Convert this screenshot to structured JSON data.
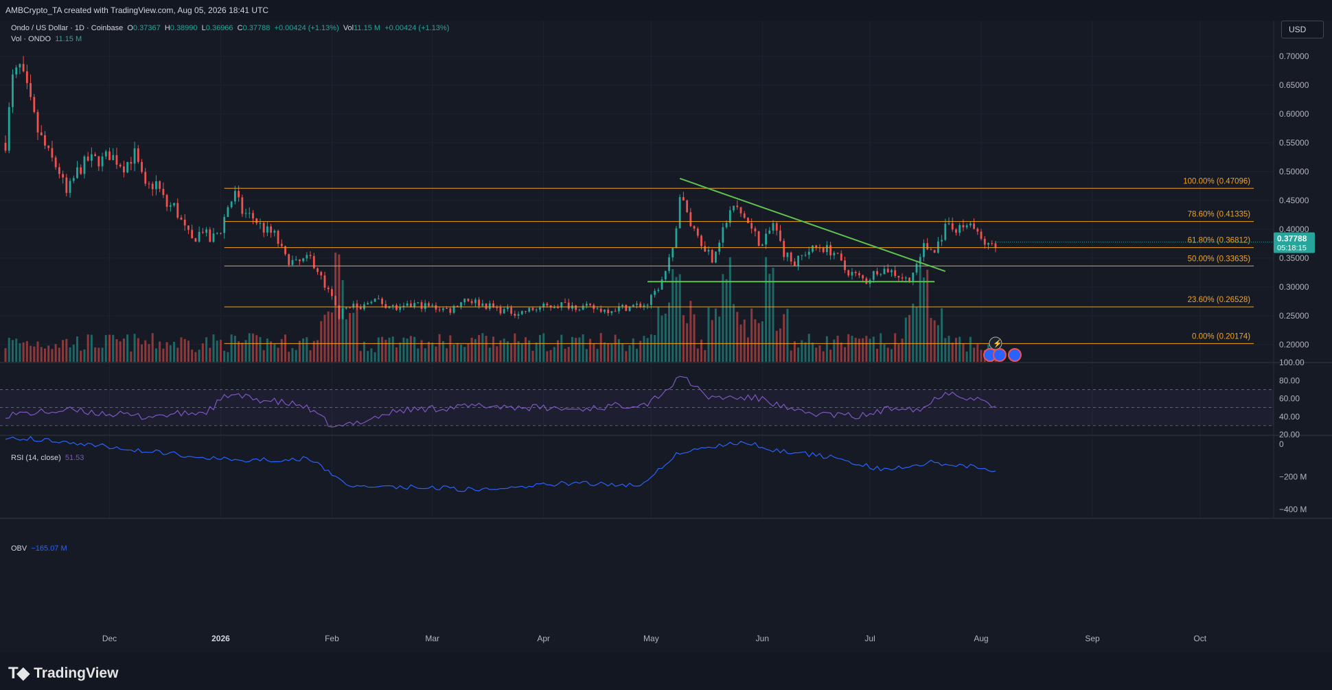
{
  "header": {
    "credit": "AMBCrypto_TA created with TradingView.com, Aug 05, 2026 18:41 UTC"
  },
  "legend": {
    "symbol": "Ondo / US Dollar · 1D · Coinbase",
    "o_label": "O",
    "o": "0.37367",
    "h_label": "H",
    "h": "0.38990",
    "l_label": "L",
    "l": "0.36966",
    "c_label": "C",
    "c": "0.37788",
    "change": "+0.00424 (+1.13%)",
    "vol_label": "Vol",
    "vol": "11.15 M",
    "vol_change": "+0.00424 (+1.13%)",
    "vol_series_label": "Vol · ONDO",
    "vol_series_value": "11.15 M"
  },
  "currency_button": "USD",
  "price_tag": {
    "price": "0.37788",
    "countdown": "05:18:15"
  },
  "rsi_legend": {
    "label": "RSI (14, close)",
    "value": "51.53"
  },
  "obv_legend": {
    "label": "OBV",
    "value": "−165.07 M"
  },
  "footer": {
    "brand": "TradingView"
  },
  "colors": {
    "up": "#26a69a",
    "down": "#ef5350",
    "fib": "#f7a21b",
    "trend": "#5ec44e",
    "rsi": "#7e57c2",
    "obv": "#2962ff",
    "background": "#161a25"
  },
  "chart_data": [
    {
      "type": "candlestick",
      "title": "Ondo / US Dollar · 1D · Coinbase",
      "price_axis": {
        "ylim": [
          0.17,
          0.75
        ],
        "ticks": [
          0.7,
          0.65,
          0.6,
          0.55,
          0.5,
          0.45,
          0.4,
          0.35,
          0.3,
          0.25,
          0.2
        ],
        "tick_labels": [
          "0.70000",
          "0.65000",
          "0.60000",
          "0.55000",
          "0.50000",
          "0.45000",
          "0.40000",
          "0.35000",
          "0.30000",
          "0.25000",
          "0.20000"
        ]
      },
      "time_axis": {
        "range": [
          "2025-11-02",
          "2026-10-20"
        ],
        "ticks": [
          "2025-12-01",
          "2026-01-01",
          "2026-02-01",
          "2026-03-01",
          "2026-04-01",
          "2026-05-01",
          "2026-06-01",
          "2026-07-01",
          "2026-08-01",
          "2026-09-01",
          "2026-10-01"
        ],
        "tick_labels": [
          "Dec",
          "2026",
          "Feb",
          "Mar",
          "Apr",
          "May",
          "Jun",
          "Jul",
          "Aug",
          "Sep",
          "Oct"
        ]
      },
      "close_path": [
        [
          "2025-11-02",
          0.55
        ],
        [
          "2025-11-04",
          0.66
        ],
        [
          "2025-11-06",
          0.68
        ],
        [
          "2025-11-08",
          0.64
        ],
        [
          "2025-11-11",
          0.57
        ],
        [
          "2025-11-14",
          0.53
        ],
        [
          "2025-11-17",
          0.5
        ],
        [
          "2025-11-19",
          0.46
        ],
        [
          "2025-11-22",
          0.5
        ],
        [
          "2025-11-25",
          0.52
        ],
        [
          "2025-11-29",
          0.52
        ],
        [
          "2025-12-01",
          0.53
        ],
        [
          "2025-12-05",
          0.51
        ],
        [
          "2025-12-08",
          0.53
        ],
        [
          "2025-12-11",
          0.47
        ],
        [
          "2025-12-14",
          0.48
        ],
        [
          "2025-12-17",
          0.44
        ],
        [
          "2025-12-19",
          0.44
        ],
        [
          "2025-12-22",
          0.4
        ],
        [
          "2025-12-24",
          0.38
        ],
        [
          "2025-12-27",
          0.4
        ],
        [
          "2025-12-29",
          0.38
        ],
        [
          "2026-01-01",
          0.4
        ],
        [
          "2026-01-03",
          0.44
        ],
        [
          "2026-01-05",
          0.46
        ],
        [
          "2026-01-07",
          0.43
        ],
        [
          "2026-01-10",
          0.42
        ],
        [
          "2026-01-13",
          0.4
        ],
        [
          "2026-01-16",
          0.39
        ],
        [
          "2026-01-19",
          0.35
        ],
        [
          "2026-01-22",
          0.34
        ],
        [
          "2026-01-26",
          0.35
        ],
        [
          "2026-01-28",
          0.33
        ],
        [
          "2026-01-30",
          0.3
        ],
        [
          "2026-02-01",
          0.28
        ],
        [
          "2026-02-03",
          0.25
        ],
        [
          "2026-02-06",
          0.27
        ],
        [
          "2026-02-09",
          0.26
        ],
        [
          "2026-02-12",
          0.28
        ],
        [
          "2026-02-16",
          0.27
        ],
        [
          "2026-02-20",
          0.26
        ],
        [
          "2026-02-24",
          0.27
        ],
        [
          "2026-03-01",
          0.265
        ],
        [
          "2026-03-06",
          0.26
        ],
        [
          "2026-03-10",
          0.28
        ],
        [
          "2026-03-15",
          0.27
        ],
        [
          "2026-03-20",
          0.26
        ],
        [
          "2026-03-25",
          0.255
        ],
        [
          "2026-04-01",
          0.265
        ],
        [
          "2026-04-06",
          0.27
        ],
        [
          "2026-04-12",
          0.265
        ],
        [
          "2026-04-18",
          0.26
        ],
        [
          "2026-04-24",
          0.265
        ],
        [
          "2026-04-30",
          0.27
        ],
        [
          "2026-05-04",
          0.31
        ],
        [
          "2026-05-07",
          0.36
        ],
        [
          "2026-05-09",
          0.46
        ],
        [
          "2026-05-12",
          0.41
        ],
        [
          "2026-05-15",
          0.38
        ],
        [
          "2026-05-18",
          0.35
        ],
        [
          "2026-05-21",
          0.4
        ],
        [
          "2026-05-24",
          0.44
        ],
        [
          "2026-05-27",
          0.42
        ],
        [
          "2026-05-30",
          0.39
        ],
        [
          "2026-06-01",
          0.37
        ],
        [
          "2026-06-04",
          0.41
        ],
        [
          "2026-06-07",
          0.36
        ],
        [
          "2026-06-10",
          0.34
        ],
        [
          "2026-06-13",
          0.36
        ],
        [
          "2026-06-17",
          0.37
        ],
        [
          "2026-06-21",
          0.36
        ],
        [
          "2026-06-24",
          0.33
        ],
        [
          "2026-06-27",
          0.32
        ],
        [
          "2026-06-30",
          0.31
        ],
        [
          "2026-07-03",
          0.33
        ],
        [
          "2026-07-06",
          0.33
        ],
        [
          "2026-07-09",
          0.32
        ],
        [
          "2026-07-12",
          0.31
        ],
        [
          "2026-07-14",
          0.34
        ],
        [
          "2026-07-16",
          0.37
        ],
        [
          "2026-07-19",
          0.36
        ],
        [
          "2026-07-21",
          0.39
        ],
        [
          "2026-07-23",
          0.41
        ],
        [
          "2026-07-26",
          0.4
        ],
        [
          "2026-07-29",
          0.41
        ],
        [
          "2026-08-01",
          0.38
        ],
        [
          "2026-08-03",
          0.37
        ],
        [
          "2026-08-05",
          0.37788
        ]
      ],
      "fibonacci": [
        {
          "label": "100.00% (0.47096)",
          "price": 0.47096
        },
        {
          "label": "78.60% (0.41335)",
          "price": 0.41335
        },
        {
          "label": "61.80% (0.36812)",
          "price": 0.36812
        },
        {
          "label": "50.00% (0.33635)",
          "price": 0.33635
        },
        {
          "label": "23.60% (0.26528)",
          "price": 0.26528
        },
        {
          "label": "0.00% (0.20174)",
          "price": 0.20174
        }
      ],
      "fib_range": [
        "2026-01-02",
        "2026-10-16"
      ],
      "trendlines": [
        {
          "name": "descending resistance",
          "from": [
            "2026-05-09",
            0.488
          ],
          "to": [
            "2026-07-22",
            0.327
          ]
        },
        {
          "name": "horizontal support",
          "from": [
            "2026-04-30",
            0.309
          ],
          "to": [
            "2026-07-19",
            0.309
          ]
        }
      ],
      "volume": {
        "label": "Vol · ONDO",
        "last": "11.15 M",
        "spikes": [
          "2026-02-03",
          "2026-05-08",
          "2026-05-22",
          "2026-06-03",
          "2026-07-16"
        ]
      }
    },
    {
      "type": "line",
      "title": "RSI (14, close)",
      "ylim": [
        20,
        100
      ],
      "tick_labels": [
        "100.00",
        "80.00",
        "60.00",
        "40.00",
        "20.00"
      ],
      "ticks": [
        100,
        80,
        60,
        40,
        20
      ],
      "bands": [
        30,
        50,
        70
      ],
      "x": [
        "2025-11-02",
        "2025-11-20",
        "2025-12-10",
        "2025-12-28",
        "2026-01-03",
        "2026-01-24",
        "2026-02-02",
        "2026-02-20",
        "2026-03-15",
        "2026-04-10",
        "2026-04-30",
        "2026-05-06",
        "2026-05-10",
        "2026-05-16",
        "2026-06-01",
        "2026-06-10",
        "2026-06-28",
        "2026-07-10",
        "2026-07-15",
        "2026-07-22",
        "2026-08-01",
        "2026-08-05"
      ],
      "values": [
        42,
        47,
        40,
        45,
        64,
        52,
        27,
        47,
        52,
        48,
        55,
        72,
        86,
        62,
        60,
        45,
        40,
        52,
        47,
        68,
        58,
        51.53
      ]
    },
    {
      "type": "line",
      "title": "OBV",
      "ylim": [
        -400,
        50
      ],
      "tick_labels": [
        "0",
        "−200 M",
        "−400 M"
      ],
      "ticks": [
        0,
        -200,
        -400
      ],
      "unit": "M",
      "x": [
        "2025-11-02",
        "2025-11-18",
        "2025-12-10",
        "2026-01-05",
        "2026-01-26",
        "2026-02-05",
        "2026-02-20",
        "2026-03-15",
        "2026-04-08",
        "2026-04-28",
        "2026-05-08",
        "2026-05-18",
        "2026-05-28",
        "2026-06-03",
        "2026-06-20",
        "2026-07-05",
        "2026-07-18",
        "2026-08-01",
        "2026-08-05"
      ],
      "values": [
        45,
        20,
        -40,
        -100,
        -90,
        -250,
        -260,
        -280,
        -240,
        -250,
        -60,
        -10,
        10,
        -30,
        -80,
        -160,
        -110,
        -140,
        -165.07
      ]
    }
  ]
}
